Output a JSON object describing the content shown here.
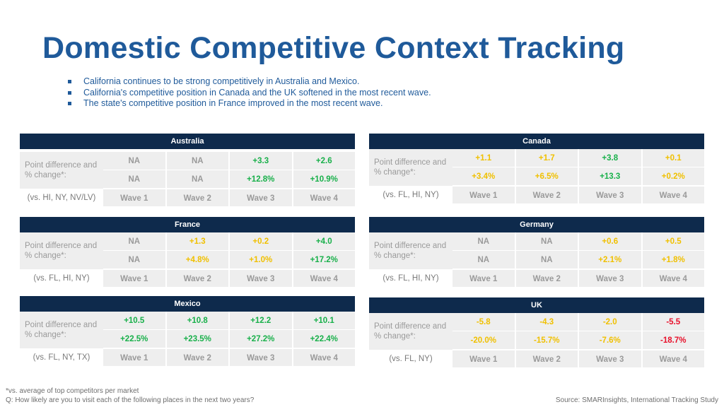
{
  "title": "Domestic Competitive Context Tracking",
  "bullets": [
    "California continues to be strong competitively in Australia and Mexico.",
    "California's competitive position in Canada and the UK softened in the most recent wave.",
    "The state's competitive position in France improved in the most recent wave."
  ],
  "colors": {
    "header": "#0e2a4c",
    "title": "#1f5a9a",
    "green": "#18b04a",
    "yellow": "#f0c000",
    "red": "#e8102a",
    "gray": "#9a9a9a"
  },
  "panels": [
    {
      "name": "Australia",
      "label": "Point difference and % change*:",
      "vs": "(vs. HI, NY, NV/LV)",
      "points": [
        {
          "text": "NA",
          "tone": "gray"
        },
        {
          "text": "NA",
          "tone": "gray"
        },
        {
          "text": "+3.3",
          "tone": "green"
        },
        {
          "text": "+2.6",
          "tone": "green"
        }
      ],
      "pct": [
        {
          "text": "NA",
          "tone": "gray"
        },
        {
          "text": "NA",
          "tone": "gray"
        },
        {
          "text": "+12.8%",
          "tone": "green"
        },
        {
          "text": "+10.9%",
          "tone": "green"
        }
      ],
      "waves": [
        "Wave 1",
        "Wave 2",
        "Wave 3",
        "Wave 4"
      ]
    },
    {
      "name": "Canada",
      "label": "Point difference and % change*:",
      "vs": "(vs. FL, HI, NY)",
      "points": [
        {
          "text": "+1.1",
          "tone": "yellow"
        },
        {
          "text": "+1.7",
          "tone": "yellow"
        },
        {
          "text": "+3.8",
          "tone": "green"
        },
        {
          "text": "+0.1",
          "tone": "yellow"
        }
      ],
      "pct": [
        {
          "text": "+3.4%",
          "tone": "yellow"
        },
        {
          "text": "+6.5%",
          "tone": "yellow"
        },
        {
          "text": "+13.3",
          "tone": "green"
        },
        {
          "text": "+0.2%",
          "tone": "yellow"
        }
      ],
      "waves": [
        "Wave 1",
        "Wave 2",
        "Wave 3",
        "Wave 4"
      ]
    },
    {
      "name": "France",
      "label": "Point difference and % change*:",
      "vs": "(vs. FL, HI, NY)",
      "points": [
        {
          "text": "NA",
          "tone": "gray"
        },
        {
          "text": "+1.3",
          "tone": "yellow"
        },
        {
          "text": "+0.2",
          "tone": "yellow"
        },
        {
          "text": "+4.0",
          "tone": "green"
        }
      ],
      "pct": [
        {
          "text": "NA",
          "tone": "gray"
        },
        {
          "text": "+4.8%",
          "tone": "yellow"
        },
        {
          "text": "+1.0%",
          "tone": "yellow"
        },
        {
          "text": "+17.2%",
          "tone": "green"
        }
      ],
      "waves": [
        "Wave 1",
        "Wave 2",
        "Wave 3",
        "Wave 4"
      ]
    },
    {
      "name": "Germany",
      "label": "Point difference and % change*:",
      "vs": "(vs. FL, HI, NY)",
      "points": [
        {
          "text": "NA",
          "tone": "gray"
        },
        {
          "text": "NA",
          "tone": "gray"
        },
        {
          "text": "+0.6",
          "tone": "yellow"
        },
        {
          "text": "+0.5",
          "tone": "yellow"
        }
      ],
      "pct": [
        {
          "text": "NA",
          "tone": "gray"
        },
        {
          "text": "NA",
          "tone": "gray"
        },
        {
          "text": "+2.1%",
          "tone": "yellow"
        },
        {
          "text": "+1.8%",
          "tone": "yellow"
        }
      ],
      "waves": [
        "Wave 1",
        "Wave 2",
        "Wave 3",
        "Wave 4"
      ]
    },
    {
      "name": "Mexico",
      "label": "Point difference and % change*:",
      "vs": "(vs. FL, NY, TX)",
      "points": [
        {
          "text": "+10.5",
          "tone": "green"
        },
        {
          "text": "+10.8",
          "tone": "green"
        },
        {
          "text": "+12.2",
          "tone": "green"
        },
        {
          "text": "+10.1",
          "tone": "green"
        }
      ],
      "pct": [
        {
          "text": "+22.5%",
          "tone": "green"
        },
        {
          "text": "+23.5%",
          "tone": "green"
        },
        {
          "text": "+27.2%",
          "tone": "green"
        },
        {
          "text": "+22.4%",
          "tone": "green"
        }
      ],
      "waves": [
        "Wave 1",
        "Wave 2",
        "Wave 3",
        "Wave 4"
      ]
    },
    {
      "name": "UK",
      "label": "Point difference and % change*:",
      "vs": "(vs. FL, NY)",
      "points": [
        {
          "text": "-5.8",
          "tone": "yellow"
        },
        {
          "text": "-4.3",
          "tone": "yellow"
        },
        {
          "text": "-2.0",
          "tone": "yellow"
        },
        {
          "text": "-5.5",
          "tone": "red"
        }
      ],
      "pct": [
        {
          "text": "-20.0%",
          "tone": "yellow"
        },
        {
          "text": "-15.7%",
          "tone": "yellow"
        },
        {
          "text": "-7.6%",
          "tone": "yellow"
        },
        {
          "text": "-18.7%",
          "tone": "red"
        }
      ],
      "waves": [
        "Wave 1",
        "Wave 2",
        "Wave 3",
        "Wave 4"
      ]
    }
  ],
  "footnote_1": "*vs. average of top competitors per market",
  "footnote_2": "Q: How likely are you to visit each of the following places in the next two years?",
  "source": "Source: SMARInsights, International Tracking Study"
}
